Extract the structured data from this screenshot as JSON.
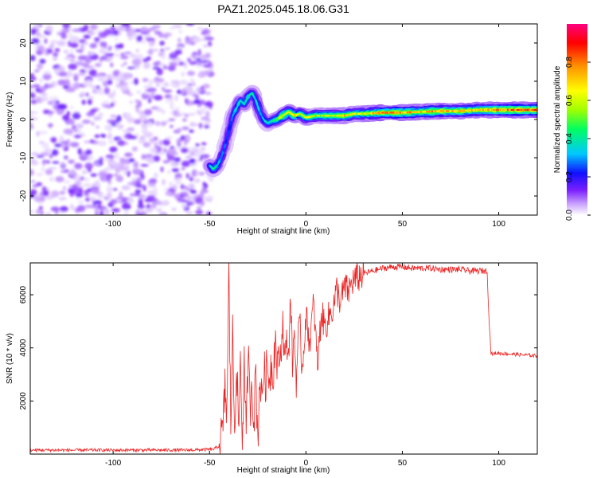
{
  "title": "PAZ1.2025.045.18.06.G31",
  "chart_data": [
    {
      "type": "heatmap",
      "xlabel": "Height of straight line (km)",
      "ylabel": "Frequency (Hz)",
      "xlim": [
        -143,
        120
      ],
      "ylim": [
        -25,
        25
      ],
      "xticks": [
        -100,
        -50,
        0,
        50,
        100
      ],
      "yticks": [
        -20,
        -10,
        0,
        10,
        20
      ],
      "grid": false,
      "colorbar": {
        "label": "Normalized spectral amplitude",
        "range": [
          0,
          1
        ],
        "ticks": [
          0.0,
          0.2,
          0.4,
          0.6,
          0.8
        ],
        "colors": [
          "#ffffff",
          "#c8a0ff",
          "#7a20ff",
          "#1010ff",
          "#00c8ff",
          "#00ff60",
          "#a0ff00",
          "#ffff00",
          "#ff9000",
          "#ff0000",
          "#ff0080"
        ]
      },
      "noise_region": {
        "x_range": [
          -143,
          -49
        ],
        "freq_range": [
          -25,
          25
        ],
        "amplitude_range": [
          0.02,
          0.15
        ]
      },
      "ridge": {
        "height_km": [
          -50,
          -48,
          -46,
          -44,
          -42,
          -40,
          -38,
          -36,
          -34,
          -32,
          -30,
          -28,
          -26,
          -24,
          -22,
          -20,
          -18,
          -15,
          -12,
          -9,
          -6,
          -3,
          0,
          5,
          10,
          15,
          20,
          25,
          30,
          40,
          50,
          60,
          70,
          80,
          90,
          100,
          110,
          120
        ],
        "frequency_hz": [
          -12,
          -13,
          -12,
          -10,
          -7,
          -3,
          1,
          3,
          5,
          4,
          6,
          7,
          5,
          2,
          0,
          -1,
          -0.5,
          0,
          1,
          2,
          1,
          1.5,
          0.5,
          1,
          1,
          1,
          1,
          1.5,
          1.5,
          1.8,
          1.8,
          2,
          2.2,
          2.2,
          2.5,
          2.5,
          2.5,
          2.5
        ],
        "amplitude": [
          0.3,
          0.4,
          0.35,
          0.3,
          0.25,
          0.25,
          0.3,
          0.35,
          0.4,
          0.35,
          0.4,
          0.35,
          0.35,
          0.3,
          0.35,
          0.35,
          0.4,
          0.5,
          0.65,
          0.6,
          0.7,
          0.5,
          0.6,
          0.55,
          0.55,
          0.6,
          0.7,
          0.6,
          0.6,
          0.75,
          0.75,
          0.7,
          0.75,
          0.7,
          0.7,
          0.75,
          0.8,
          0.85
        ]
      }
    },
    {
      "type": "line",
      "xlabel": "Height of straight line (km)",
      "ylabel": "SNR (10 * v/v)",
      "xlim": [
        -143,
        120
      ],
      "ylim": [
        0,
        7200
      ],
      "xticks": [
        -100,
        -50,
        0,
        50,
        100
      ],
      "yticks": [
        2000,
        4000,
        6000
      ],
      "grid": false,
      "series": [
        {
          "color": "#ee2222",
          "x": [
            -143,
            -120,
            -100,
            -80,
            -60,
            -48,
            -45,
            -43,
            -42,
            -41,
            -40,
            -39,
            -38,
            -37,
            -36,
            -35,
            -34,
            -33,
            -32,
            -31,
            -30,
            -29,
            -28,
            -27,
            -26,
            -25,
            -24,
            -23,
            -22,
            -21,
            -20,
            -19,
            -18,
            -17,
            -16,
            -15,
            -14,
            -13,
            -12,
            -11,
            -10,
            -9,
            -8,
            -7,
            -6,
            -5,
            -4,
            -3,
            -2,
            -1,
            0,
            2,
            4,
            6,
            8,
            10,
            12,
            14,
            16,
            18,
            20,
            22,
            24,
            26,
            28,
            30,
            35,
            40,
            45,
            50,
            55,
            60,
            65,
            70,
            75,
            80,
            85,
            90,
            94,
            95,
            96,
            97,
            98,
            100,
            110,
            120
          ],
          "y": [
            150,
            150,
            150,
            150,
            150,
            180,
            300,
            900,
            2500,
            1500,
            6800,
            1200,
            4500,
            800,
            3800,
            600,
            3600,
            500,
            3400,
            400,
            4000,
            1600,
            3000,
            1200,
            3200,
            400,
            3000,
            2000,
            3200,
            2800,
            3300,
            2900,
            3400,
            3000,
            4500,
            3300,
            3600,
            3800,
            5000,
            3500,
            4200,
            3700,
            6000,
            3400,
            4600,
            2700,
            4500,
            4700,
            3100,
            4200,
            5200,
            4200,
            5700,
            3300,
            5300,
            4800,
            5200,
            5500,
            6200,
            5700,
            6300,
            6100,
            6500,
            6600,
            6700,
            6800,
            6900,
            7000,
            7050,
            7050,
            7000,
            7000,
            7000,
            6950,
            6950,
            6950,
            6900,
            6900,
            6900,
            5000,
            3800,
            3750,
            3800,
            3800,
            3750,
            3700
          ]
        }
      ]
    }
  ]
}
